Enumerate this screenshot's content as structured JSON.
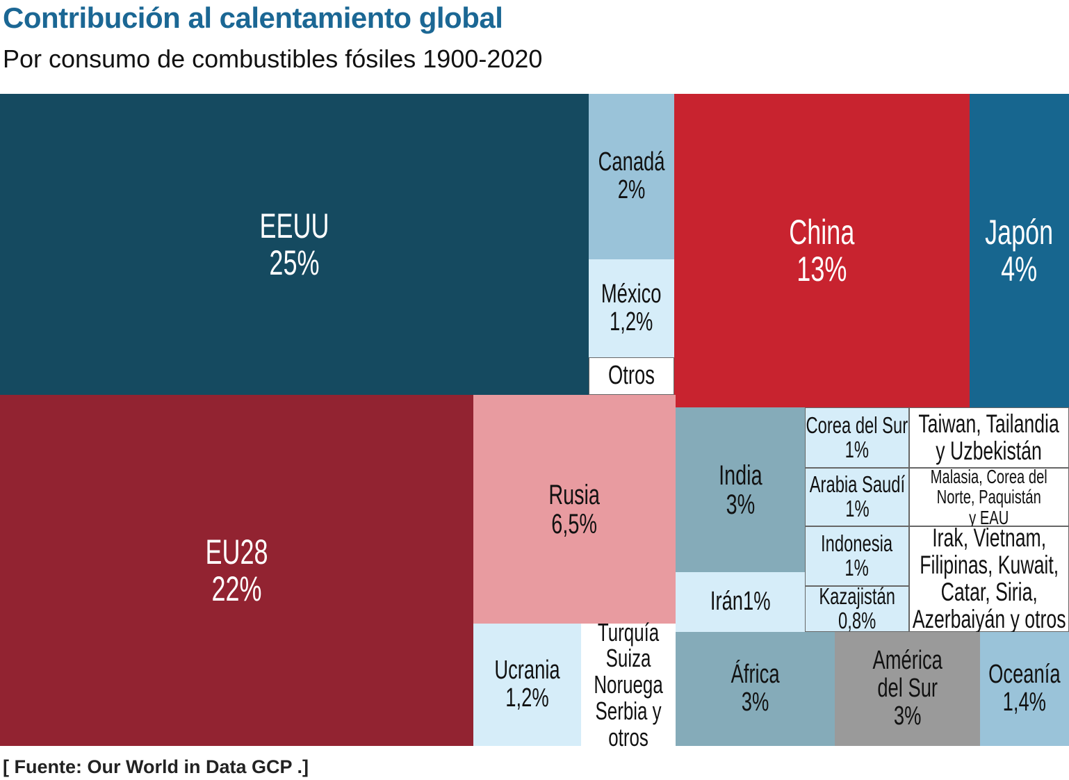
{
  "title": "Contribución al calentamiento global",
  "subtitle": "Por consumo de combustibles fósiles 1900-2020",
  "source": "[ Fuente: Our World in Data GCP .]",
  "chart_data": {
    "type": "treemap",
    "title": "Contribución al calentamiento global",
    "subtitle": "Por consumo de combustibles fósiles 1900-2020",
    "unit": "%",
    "items": [
      {
        "id": "eeuu",
        "label": "EEUU",
        "value_text": "25%",
        "value": 25,
        "color": "#154a60",
        "text_color": "#ffffff"
      },
      {
        "id": "canada",
        "label": "Canadá",
        "value_text": "2%",
        "value": 2,
        "color": "#9ac3d9",
        "text_color": "#111111"
      },
      {
        "id": "mexico",
        "label": "México",
        "value_text": "1,2%",
        "value": 1.2,
        "color": "#d6edf9",
        "text_color": "#111111"
      },
      {
        "id": "otros",
        "label": "Otros",
        "value_text": "",
        "color": "#ffffff",
        "text_color": "#111111"
      },
      {
        "id": "china",
        "label": "China",
        "value_text": "13%",
        "value": 13,
        "color": "#c8232f",
        "text_color": "#ffffff"
      },
      {
        "id": "japon",
        "label": "Japón",
        "value_text": "4%",
        "value": 4,
        "color": "#17668f",
        "text_color": "#ffffff"
      },
      {
        "id": "eu28",
        "label": "EU28",
        "value_text": "22%",
        "value": 22,
        "color": "#922331",
        "text_color": "#ffffff"
      },
      {
        "id": "rusia",
        "label": "Rusia",
        "value_text": "6,5%",
        "value": 6.5,
        "color": "#e89ba0",
        "text_color": "#111111"
      },
      {
        "id": "ucrania",
        "label": "Ucrania",
        "value_text": "1,2%",
        "value": 1.2,
        "color": "#d6edf9",
        "text_color": "#111111"
      },
      {
        "id": "turquia",
        "label": "Turquía\nSuiza\nNoruega\nSerbia y\notros",
        "value_text": "",
        "color": "#ffffff",
        "text_color": "#111111"
      },
      {
        "id": "india",
        "label": "India",
        "value_text": "3%",
        "value": 3,
        "color": "#85abb9",
        "text_color": "#111111"
      },
      {
        "id": "iran",
        "label": "Irán1%",
        "value_text": "",
        "value": 1,
        "color": "#d6edf9",
        "text_color": "#111111"
      },
      {
        "id": "corea",
        "label": "Corea del Sur",
        "value_text": "1%",
        "value": 1,
        "color": "#d6edf9",
        "text_color": "#111111"
      },
      {
        "id": "arabia",
        "label": "Arabia Saudí",
        "value_text": "1%",
        "value": 1,
        "color": "#d6edf9",
        "text_color": "#111111"
      },
      {
        "id": "indonesia",
        "label": "Indonesia",
        "value_text": "1%",
        "value": 1,
        "color": "#d6edf9",
        "text_color": "#111111"
      },
      {
        "id": "kazajistan",
        "label": "Kazajistán",
        "value_text": "0,8%",
        "value": 0.8,
        "color": "#d6edf9",
        "text_color": "#111111"
      },
      {
        "id": "taiwan",
        "label": "Taiwan, Tailandia\ny Uzbekistán",
        "value_text": "",
        "color": "#ffffff",
        "text_color": "#111111"
      },
      {
        "id": "malasia",
        "label": "Malasia, Corea del\nNorte, Paquistán\ny EAU",
        "value_text": "",
        "color": "#ffffff",
        "text_color": "#111111"
      },
      {
        "id": "irak",
        "label": "Irak, Vietnam,\nFilipinas, Kuwait,\nCatar, Siria,\nAzerbaiyán y otros",
        "value_text": "",
        "color": "#ffffff",
        "text_color": "#111111"
      },
      {
        "id": "africa",
        "label": "África",
        "value_text": "3%",
        "value": 3,
        "color": "#85abb9",
        "text_color": "#111111"
      },
      {
        "id": "america",
        "label": "América\ndel Sur",
        "value_text": "3%",
        "value": 3,
        "color": "#9a9a9a",
        "text_color": "#111111"
      },
      {
        "id": "oceania",
        "label": "Oceanía",
        "value_text": "1,4%",
        "value": 1.4,
        "color": "#9ac3d9",
        "text_color": "#111111"
      }
    ]
  }
}
